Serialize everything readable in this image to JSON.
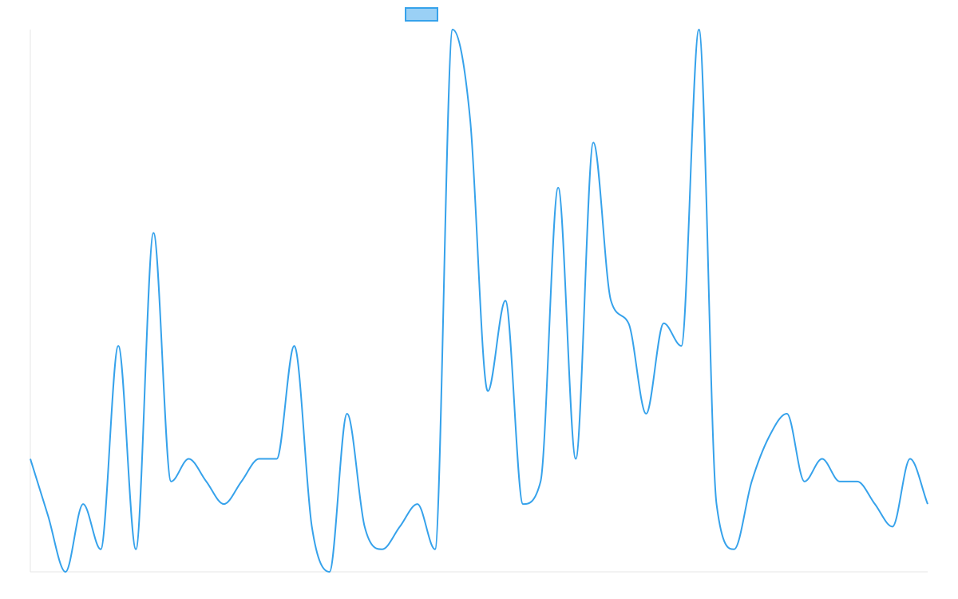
{
  "chart_data": {
    "type": "line",
    "title": "",
    "xlabel": "",
    "ylabel": "",
    "legend": {
      "placement": "top-center",
      "entries": [
        {
          "label": ""
        }
      ]
    },
    "grid": false,
    "smooth": true,
    "ylim": [
      0,
      24
    ],
    "x": [
      0,
      1,
      2,
      3,
      4,
      5,
      6,
      7,
      8,
      9,
      10,
      11,
      12,
      13,
      14,
      15,
      16,
      17,
      18,
      19,
      20,
      21,
      22,
      23,
      24,
      25,
      26,
      27,
      28,
      29,
      30,
      31,
      32,
      33,
      34,
      35,
      36,
      37,
      38,
      39,
      40,
      41,
      42,
      43,
      44,
      45,
      46,
      47,
      48,
      49,
      50,
      51
    ],
    "series": [
      {
        "name": "",
        "values": [
          5,
          2.5,
          0,
          3,
          1,
          10,
          1,
          15,
          4,
          5,
          4,
          3,
          4,
          5,
          5,
          10,
          2,
          0,
          7,
          2,
          1,
          2,
          3,
          1,
          24,
          20,
          8,
          12,
          3,
          4,
          17,
          5,
          19,
          12,
          11,
          7,
          11,
          10,
          24,
          3,
          1,
          4,
          6,
          7,
          4,
          5,
          4,
          4,
          3,
          2,
          5,
          3
        ]
      }
    ]
  },
  "colors": {
    "line": "#36a2eb",
    "legend_fill": "#9ad0f5",
    "axis": "#e5e5e5"
  }
}
